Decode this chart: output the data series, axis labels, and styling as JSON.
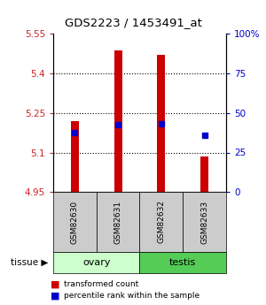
{
  "title": "GDS2223 / 1453491_at",
  "samples": [
    "GSM82630",
    "GSM82631",
    "GSM82632",
    "GSM82633"
  ],
  "bar_bottom": 4.95,
  "bar_tops": [
    5.22,
    5.485,
    5.47,
    5.085
  ],
  "percentile_values": [
    5.175,
    5.205,
    5.21,
    5.165
  ],
  "ylim_left": [
    4.95,
    5.55
  ],
  "ylim_right": [
    0,
    100
  ],
  "yticks_left": [
    4.95,
    5.1,
    5.25,
    5.4,
    5.55
  ],
  "yticks_right": [
    0,
    25,
    50,
    75,
    100
  ],
  "ytick_labels_left": [
    "4.95",
    "5.1",
    "5.25",
    "5.4",
    "5.55"
  ],
  "ytick_labels_right": [
    "0",
    "25",
    "50",
    "75",
    "100%"
  ],
  "bar_color": "#cc0000",
  "percentile_color": "#0000cc",
  "bar_width": 0.18,
  "left_tick_color": "#cc2222",
  "right_tick_color": "#0000cc",
  "sample_box_color": "#cccccc",
  "ovary_color": "#ccffcc",
  "testis_color": "#55cc55",
  "legend_tc": "transformed count",
  "legend_pr": "percentile rank within the sample"
}
